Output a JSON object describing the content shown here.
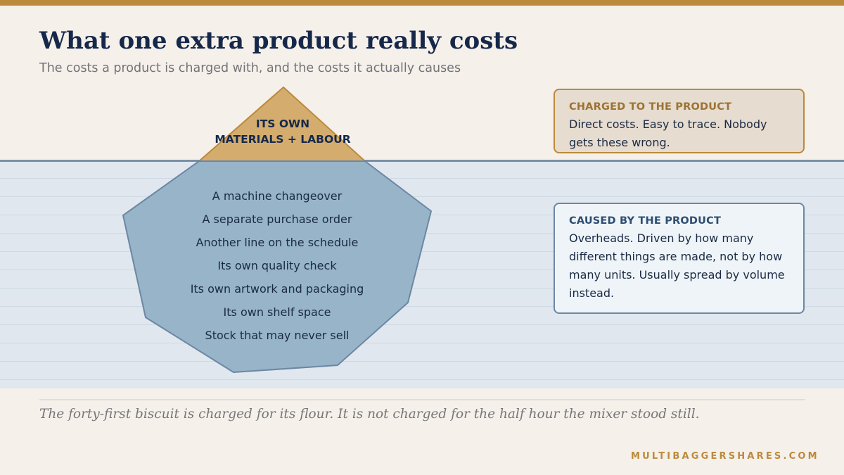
{
  "title": "What one extra product really costs",
  "subtitle": "The costs a product is charged with, and the costs it actually causes",
  "iceberg": {
    "tip_lines": [
      "ITS OWN",
      "MATERIALS + LABOUR"
    ],
    "below_items": [
      "A machine changeover",
      "A separate purchase order",
      "Another line on the schedule",
      "Its own quality check",
      "Its own artwork and packaging",
      "Its own shelf space",
      "Stock that may never sell"
    ],
    "tip_color": "#d4ad6e",
    "body_color": "#97b4c9"
  },
  "cards": {
    "charged": {
      "heading": "CHARGED TO THE PRODUCT",
      "body": "Direct costs. Easy to trace. Nobody gets these wrong."
    },
    "caused": {
      "heading": "CAUSED BY THE PRODUCT",
      "body": "Overheads. Driven by how many different things are made, not by how many units. Usually spread by volume instead."
    }
  },
  "quote": "The forty-first biscuit is charged for its flour. It is not charged for the half hour the mixer stood still.",
  "footer": "MULTIBAGGERSHARES.COM",
  "colors": {
    "accent": "#bc8a3c",
    "navy": "#16284a",
    "water": "#e0e7ee",
    "waterline": "#7890a8",
    "background": "#f5f0ea"
  }
}
